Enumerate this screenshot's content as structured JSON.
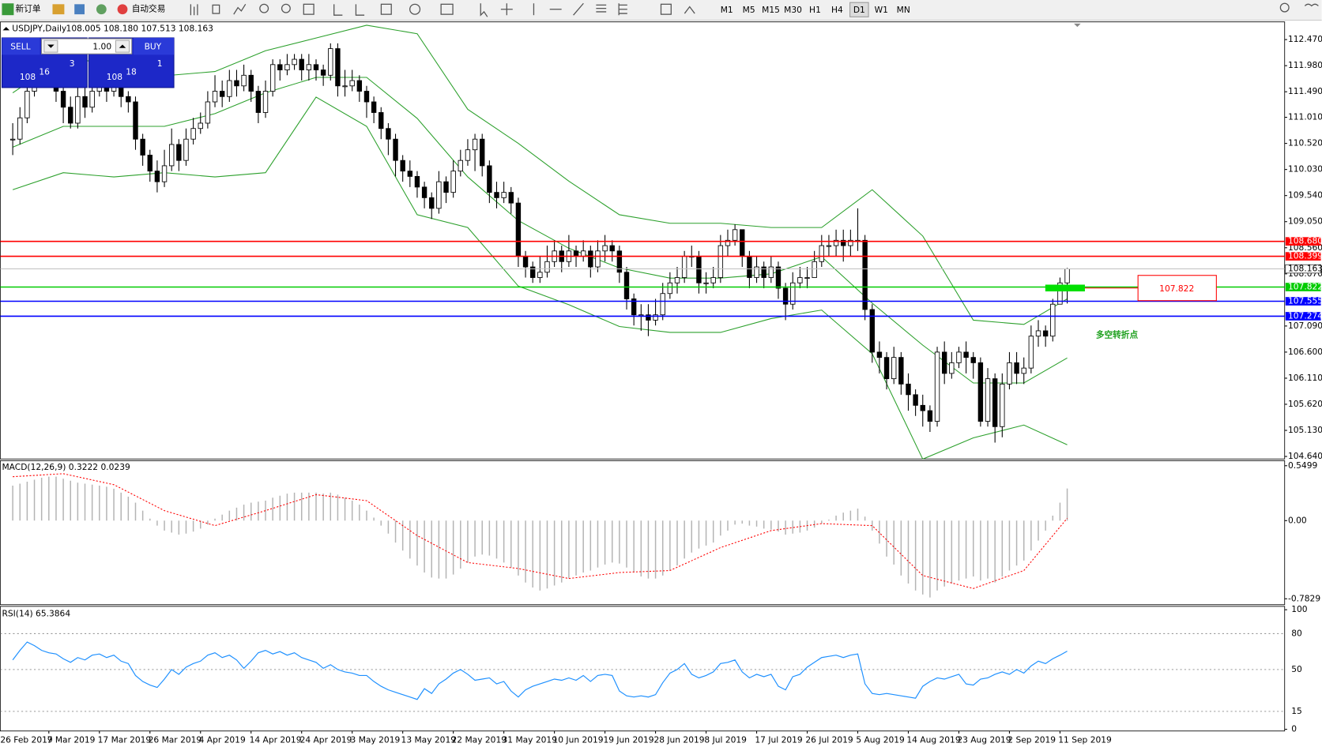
{
  "toolbar": {
    "new_order": "新订单",
    "auto_trading": "自动交易",
    "timeframes": [
      "M1",
      "M5",
      "M15",
      "M30",
      "H1",
      "H4",
      "D1",
      "W1",
      "MN"
    ]
  },
  "trade_panel": {
    "sell": "SELL",
    "buy": "BUY",
    "lots": "1.00",
    "bid_big": "108",
    "bid_pips": "16",
    "bid_frac": "3",
    "ask_big": "108",
    "ask_pips": "18",
    "ask_frac": "1"
  },
  "chart_data": [
    {
      "type": "candlestick",
      "title": "USDJPY,Daily",
      "ohlc_header": "108.005 108.180 107.513 108.163",
      "x_labels": [
        "26 Feb 2019",
        "7 Mar 2019",
        "17 Mar 2019",
        "26 Mar 2019",
        "4 Apr 2019",
        "14 Apr 2019",
        "24 Apr 2019",
        "3 May 2019",
        "13 May 2019",
        "22 May 2019",
        "31 May 2019",
        "10 Jun 2019",
        "19 Jun 2019",
        "28 Jun 2019",
        "8 Jul 2019",
        "17 Jul 2019",
        "26 Jul 2019",
        "5 Aug 2019",
        "14 Aug 2019",
        "23 Aug 2019",
        "2 Sep 2019",
        "11 Sep 2019"
      ],
      "close": [
        110.6,
        111.0,
        111.5,
        111.9,
        112.0,
        111.8,
        111.5,
        111.2,
        110.9,
        111.4,
        111.2,
        111.5,
        111.6,
        111.5,
        111.7,
        111.4,
        111.3,
        110.6,
        110.3,
        110.0,
        109.8,
        110.1,
        110.5,
        110.2,
        110.6,
        110.8,
        110.9,
        111.3,
        111.5,
        111.4,
        111.7,
        111.6,
        111.8,
        111.5,
        111.1,
        111.5,
        112.0,
        111.9,
        112.0,
        112.1,
        111.9,
        112.0,
        111.9,
        111.8,
        112.3,
        111.6,
        111.6,
        111.7,
        111.5,
        111.3,
        111.1,
        110.8,
        110.6,
        110.2,
        110.0,
        109.9,
        109.7,
        109.5,
        109.3,
        109.8,
        109.6,
        110.0,
        110.2,
        110.4,
        110.6,
        110.1,
        109.6,
        109.5,
        109.6,
        109.4,
        108.4,
        108.2,
        108.0,
        108.1,
        108.3,
        108.5,
        108.3,
        108.5,
        108.4,
        108.5,
        108.2,
        108.5,
        108.6,
        108.5,
        108.1,
        107.6,
        107.3,
        107.3,
        107.2,
        107.3,
        107.7,
        107.9,
        108.0,
        108.4,
        108.4,
        107.9,
        107.9,
        108.0,
        108.6,
        108.7,
        108.9,
        108.4,
        108.0,
        108.2,
        108.0,
        108.2,
        107.8,
        107.5,
        107.9,
        108.0,
        108.0,
        108.3,
        108.6,
        108.6,
        108.7,
        108.6,
        108.7,
        108.7,
        107.4,
        106.6,
        106.5,
        106.1,
        106.5,
        106.0,
        105.8,
        105.6,
        105.5,
        105.3,
        106.6,
        106.2,
        106.4,
        106.6,
        106.5,
        106.4,
        105.3,
        106.1,
        105.2,
        106.0,
        106.4,
        106.2,
        106.3,
        106.9,
        107.0,
        106.9,
        107.5,
        107.9,
        108.163
      ],
      "high": [
        110.9,
        111.2,
        111.7,
        112.1,
        112.3,
        112.1,
        111.9,
        111.6,
        111.4,
        111.6,
        111.6,
        111.8,
        111.9,
        111.8,
        111.9,
        111.8,
        111.5,
        111.4,
        110.7,
        110.4,
        110.2,
        110.4,
        110.8,
        110.6,
        110.8,
        111.0,
        111.1,
        111.5,
        111.8,
        111.7,
        111.9,
        111.9,
        112.0,
        111.9,
        111.6,
        111.7,
        112.1,
        112.1,
        112.2,
        112.2,
        112.2,
        112.2,
        112.1,
        112.0,
        112.4,
        112.4,
        111.9,
        111.9,
        111.8,
        111.6,
        111.4,
        111.2,
        110.9,
        110.7,
        110.3,
        110.2,
        110.0,
        109.8,
        109.6,
        110.0,
        109.9,
        110.2,
        110.4,
        110.6,
        110.7,
        110.7,
        110.2,
        109.8,
        109.8,
        109.7,
        109.5,
        108.5,
        108.3,
        108.4,
        108.6,
        108.7,
        108.6,
        108.8,
        108.6,
        108.7,
        108.6,
        108.7,
        108.8,
        108.7,
        108.6,
        108.2,
        107.7,
        107.5,
        107.5,
        107.6,
        107.9,
        108.1,
        108.2,
        108.5,
        108.6,
        108.5,
        108.1,
        108.2,
        108.8,
        108.9,
        109.0,
        108.9,
        108.5,
        108.4,
        108.3,
        108.4,
        108.3,
        107.9,
        108.1,
        108.2,
        108.2,
        108.5,
        108.8,
        108.8,
        108.9,
        108.9,
        108.9,
        109.3,
        108.8,
        107.5,
        106.8,
        106.6,
        106.7,
        106.6,
        106.2,
        105.9,
        105.8,
        105.6,
        106.7,
        106.8,
        106.6,
        106.7,
        106.8,
        106.6,
        106.5,
        106.3,
        106.2,
        106.2,
        106.6,
        106.6,
        106.5,
        107.1,
        107.2,
        107.1,
        107.6,
        108.0,
        108.18
      ],
      "low": [
        110.3,
        110.5,
        110.9,
        111.4,
        111.7,
        111.6,
        111.3,
        110.9,
        110.8,
        110.8,
        111.0,
        111.1,
        111.4,
        111.3,
        111.4,
        111.2,
        111.1,
        110.4,
        110.1,
        109.8,
        109.6,
        109.7,
        110.0,
        110.0,
        110.1,
        110.5,
        110.7,
        110.8,
        111.2,
        111.2,
        111.3,
        111.4,
        111.5,
        111.3,
        110.9,
        111.0,
        111.4,
        111.7,
        111.8,
        111.9,
        111.7,
        111.7,
        111.7,
        111.6,
        111.7,
        111.4,
        111.4,
        111.5,
        111.3,
        111.0,
        110.9,
        110.6,
        110.3,
        109.9,
        109.8,
        109.7,
        109.5,
        109.3,
        109.1,
        109.2,
        109.4,
        109.5,
        109.9,
        110.1,
        110.0,
        109.9,
        109.4,
        109.3,
        109.4,
        109.2,
        108.2,
        108.0,
        107.9,
        107.9,
        108.0,
        108.2,
        108.1,
        108.2,
        108.2,
        108.3,
        108.0,
        108.1,
        108.3,
        108.3,
        107.9,
        107.4,
        107.1,
        107.0,
        106.9,
        107.1,
        107.2,
        107.6,
        107.7,
        107.9,
        108.2,
        107.7,
        107.7,
        107.8,
        107.9,
        108.4,
        108.6,
        108.2,
        107.8,
        107.9,
        107.8,
        107.9,
        107.6,
        107.2,
        107.4,
        107.8,
        107.8,
        108.0,
        108.2,
        108.4,
        108.4,
        108.3,
        108.4,
        108.5,
        107.2,
        106.4,
        106.2,
        105.9,
        106.0,
        105.8,
        105.5,
        105.4,
        105.2,
        105.1,
        105.2,
        106.0,
        106.1,
        106.3,
        106.2,
        106.1,
        105.2,
        105.2,
        104.9,
        105.0,
        105.9,
        106.0,
        106.0,
        106.2,
        106.7,
        106.7,
        106.8,
        107.5,
        107.513
      ],
      "ylim": [
        104.64,
        112.47
      ],
      "yticks": [
        {
          "value": 112.47,
          "label": "112.470"
        },
        {
          "value": 111.98,
          "label": "111.980"
        },
        {
          "value": 111.49,
          "label": "111.490"
        },
        {
          "value": 111.01,
          "label": "111.010"
        },
        {
          "value": 110.52,
          "label": "110.520"
        },
        {
          "value": 110.03,
          "label": "110.030"
        },
        {
          "value": 109.54,
          "label": "109.540"
        },
        {
          "value": 109.05,
          "label": "109.050"
        },
        {
          "value": 108.56,
          "label": "108.560"
        },
        {
          "value": 108.07,
          "label": "108.070"
        },
        {
          "value": 107.09,
          "label": "107.090"
        },
        {
          "value": 106.6,
          "label": "106.600"
        },
        {
          "value": 106.11,
          "label": "106.110"
        },
        {
          "value": 105.62,
          "label": "105.620"
        },
        {
          "value": 105.13,
          "label": "105.130"
        },
        {
          "value": 104.64,
          "label": "104.640"
        }
      ],
      "bollinger": {
        "color": "#2ca02c",
        "index": [
          0,
          7,
          14,
          21,
          28,
          35,
          42,
          49,
          56,
          63,
          70,
          77,
          84,
          91,
          98,
          105,
          112,
          119,
          126,
          133,
          140,
          146
        ],
        "upper": [
          111.47,
          112.11,
          112.03,
          111.79,
          111.87,
          112.26,
          112.5,
          112.74,
          112.58,
          111.16,
          110.52,
          109.81,
          109.18,
          109.02,
          109.02,
          108.94,
          108.94,
          109.65,
          108.78,
          107.2,
          107.12,
          107.6
        ],
        "middle": [
          110.45,
          110.84,
          110.84,
          110.84,
          111.08,
          111.47,
          111.76,
          111.76,
          110.99,
          109.89,
          109.07,
          108.55,
          108.18,
          107.99,
          107.99,
          108.07,
          108.39,
          107.52,
          106.73,
          106.02,
          106.02,
          106.49
        ],
        "lower": [
          109.65,
          109.97,
          109.89,
          109.97,
          109.89,
          109.97,
          111.39,
          110.84,
          109.18,
          108.94,
          107.84,
          107.49,
          107.08,
          106.97,
          106.97,
          107.23,
          107.39,
          106.57,
          104.59,
          104.99,
          105.23,
          104.86
        ]
      },
      "levels": [
        {
          "value": 108.68,
          "label": "108.680",
          "color": "#ff0000"
        },
        {
          "value": 108.399,
          "label": "108.399",
          "color": "#ff0000"
        },
        {
          "value": 107.822,
          "label": "107.822",
          "color": "#00cc00"
        },
        {
          "value": 107.555,
          "label": "107.555",
          "color": "#0000ff"
        },
        {
          "value": 107.274,
          "label": "107.274",
          "color": "#0000ff"
        }
      ],
      "current_price": {
        "value": 108.163,
        "label": "108.163"
      },
      "annotation": "多空转折点"
    },
    {
      "type": "macd",
      "title": "MACD(12,26,9) 0.3222 0.0239",
      "histogram": [
        0.35,
        0.37,
        0.39,
        0.41,
        0.43,
        0.44,
        0.44,
        0.42,
        0.4,
        0.38,
        0.37,
        0.36,
        0.35,
        0.34,
        0.32,
        0.28,
        0.24,
        0.18,
        0.1,
        0.02,
        -0.05,
        -0.1,
        -0.12,
        -0.14,
        -0.13,
        -0.11,
        -0.08,
        -0.04,
        0.02,
        0.06,
        0.1,
        0.13,
        0.16,
        0.18,
        0.19,
        0.2,
        0.23,
        0.25,
        0.27,
        0.28,
        0.28,
        0.28,
        0.28,
        0.27,
        0.28,
        0.26,
        0.23,
        0.2,
        0.16,
        0.1,
        0.03,
        -0.05,
        -0.13,
        -0.22,
        -0.3,
        -0.38,
        -0.45,
        -0.52,
        -0.57,
        -0.58,
        -0.58,
        -0.54,
        -0.48,
        -0.42,
        -0.36,
        -0.34,
        -0.35,
        -0.38,
        -0.42,
        -0.47,
        -0.55,
        -0.62,
        -0.67,
        -0.7,
        -0.68,
        -0.65,
        -0.62,
        -0.58,
        -0.55,
        -0.52,
        -0.5,
        -0.47,
        -0.44,
        -0.42,
        -0.43,
        -0.47,
        -0.52,
        -0.56,
        -0.58,
        -0.58,
        -0.55,
        -0.5,
        -0.45,
        -0.38,
        -0.32,
        -0.28,
        -0.25,
        -0.22,
        -0.15,
        -0.1,
        -0.04,
        -0.03,
        -0.05,
        -0.06,
        -0.08,
        -0.09,
        -0.11,
        -0.14,
        -0.13,
        -0.12,
        -0.1,
        -0.07,
        -0.03,
        0.01,
        0.05,
        0.08,
        0.1,
        0.12,
        0.04,
        -0.1,
        -0.23,
        -0.36,
        -0.44,
        -0.55,
        -0.63,
        -0.7,
        -0.74,
        -0.77,
        -0.7,
        -0.66,
        -0.63,
        -0.6,
        -0.58,
        -0.56,
        -0.6,
        -0.58,
        -0.62,
        -0.56,
        -0.5,
        -0.45,
        -0.4,
        -0.3,
        -0.2,
        -0.1,
        0.05,
        0.18,
        0.3222
      ],
      "signal": {
        "color": "#ff0000",
        "index": [
          0,
          7,
          14,
          21,
          28,
          35,
          42,
          49,
          56,
          63,
          70,
          77,
          84,
          91,
          98,
          105,
          112,
          119,
          126,
          133,
          140,
          146
        ],
        "values": [
          0.44,
          0.47,
          0.36,
          0.1,
          -0.05,
          0.1,
          0.26,
          0.2,
          -0.15,
          -0.42,
          -0.48,
          -0.58,
          -0.52,
          -0.5,
          -0.27,
          -0.1,
          -0.03,
          -0.05,
          -0.55,
          -0.68,
          -0.5,
          0.0239
        ]
      },
      "ylim": [
        -0.7829,
        0.5499
      ],
      "yticks": [
        0.5499,
        {
          "value": 0,
          "label": "0.00"
        },
        -0.7829
      ]
    },
    {
      "type": "rsi",
      "title": "RSI(14) 65.3864",
      "color": "#1e90ff",
      "values": [
        58,
        66,
        73,
        70,
        66,
        64,
        63,
        59,
        56,
        60,
        58,
        62,
        63,
        60,
        62,
        57,
        55,
        45,
        40,
        37,
        35,
        42,
        50,
        46,
        52,
        55,
        57,
        62,
        64,
        60,
        62,
        58,
        51,
        57,
        64,
        66,
        63,
        65,
        62,
        64,
        60,
        58,
        56,
        51,
        54,
        50,
        48,
        47,
        45,
        45,
        40,
        36,
        33,
        31,
        29,
        27,
        25,
        34,
        30,
        38,
        42,
        47,
        50,
        46,
        41,
        42,
        43,
        38,
        40,
        32,
        27,
        33,
        36,
        38,
        40,
        42,
        41,
        43,
        41,
        45,
        40,
        45,
        46,
        45,
        32,
        28,
        27,
        28,
        27,
        29,
        39,
        47,
        50,
        55,
        46,
        43,
        45,
        48,
        55,
        56,
        58,
        48,
        43,
        46,
        44,
        46,
        36,
        33,
        44,
        46,
        52,
        56,
        60,
        61,
        62,
        60,
        62,
        63,
        38,
        30,
        29,
        30,
        29,
        28,
        27,
        26,
        36,
        40,
        43,
        42,
        44,
        46,
        38,
        37,
        42,
        43,
        46,
        48,
        46,
        50,
        47,
        53,
        57,
        55,
        59,
        62,
        65.3864
      ],
      "ylim": [
        0,
        100
      ],
      "yticks": [
        100,
        80,
        50,
        15,
        0
      ]
    }
  ]
}
